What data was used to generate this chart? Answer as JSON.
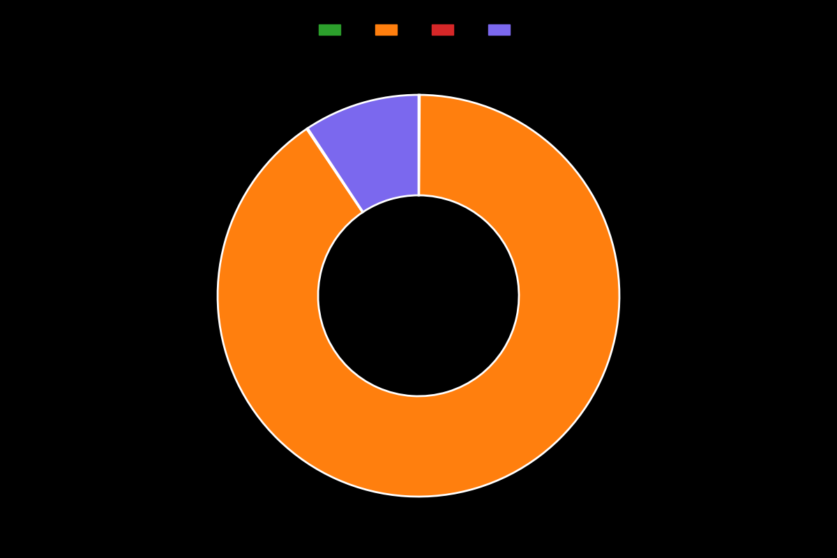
{
  "labels": [
    "",
    "",
    "",
    ""
  ],
  "values": [
    0.1,
    90.5,
    0.1,
    9.3
  ],
  "colors": [
    "#2ca02c",
    "#ff7f0e",
    "#d62728",
    "#7b68ee"
  ],
  "wedge_linewidth": 2.0,
  "wedge_linecolor": "white",
  "background_color": "#000000",
  "donut_width": 0.5,
  "figsize": [
    12,
    8
  ],
  "dpi": 100,
  "legend_marker_colors": [
    "#2ca02c",
    "#ff7f0e",
    "#d62728",
    "#7b68ee"
  ],
  "startangle": 90,
  "counterclock": false
}
